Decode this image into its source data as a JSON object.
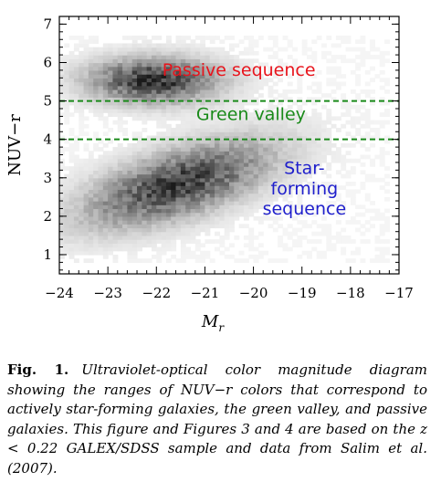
{
  "chart_data": {
    "type": "heatmap",
    "xlabel": "M_r",
    "xlabel_main": "M",
    "xlabel_sub": "r",
    "ylabel": "NUV−r",
    "xlim": [
      -24,
      -17
    ],
    "ylim": [
      0.5,
      7.2
    ],
    "x_ticks": [
      -24,
      -23,
      -22,
      -21,
      -20,
      -19,
      -18,
      -17
    ],
    "x_tick_labels": [
      "−24",
      "−23",
      "−22",
      "−21",
      "−20",
      "−19",
      "−18",
      "−17"
    ],
    "y_ticks": [
      1,
      2,
      3,
      4,
      5,
      6,
      7
    ],
    "y_tick_labels": [
      "1",
      "2",
      "3",
      "4",
      "5",
      "6",
      "7"
    ],
    "grayscale": true,
    "density_clouds": [
      {
        "name": "red_sequence",
        "center_x": -22.1,
        "center_y": 5.5,
        "spread_x": 0.9,
        "spread_y": 0.4,
        "peak": 0.85
      },
      {
        "name": "blue_cloud",
        "center_x": -21.6,
        "center_y": 2.8,
        "spread_x": 1.3,
        "spread_y": 0.6,
        "tilt": 0.35,
        "peak": 0.8
      }
    ],
    "hlines": [
      {
        "y": 5.0,
        "color": "#1a8a1a",
        "style": "dashed"
      },
      {
        "y": 4.0,
        "color": "#1a8a1a",
        "style": "dashed"
      }
    ],
    "annotations": [
      {
        "text": "Passive sequence",
        "x": -20.3,
        "y": 5.65,
        "color": "#e8141c"
      },
      {
        "text": "Green valley",
        "x": -20.05,
        "y": 4.5,
        "color": "#1a8a1a"
      },
      {
        "text": "Star-",
        "x": -18.95,
        "y": 3.1,
        "color": "#1f1fcc"
      },
      {
        "text": "forming",
        "x": -18.95,
        "y": 2.57,
        "color": "#1f1fcc"
      },
      {
        "text": "sequence",
        "x": -18.95,
        "y": 2.04,
        "color": "#1f1fcc"
      }
    ]
  },
  "caption": {
    "lead": "Fig.   1.",
    "text": "Ultraviolet-optical color magnitude diagram showing the ranges of NUV−r colors that correspond to actively star-forming galaxies, the green valley, and passive galaxies. This figure and Figures 3 and 4 are based on the z < 0.22 GALEX/SDSS sample and data from Salim et al. (2007)."
  }
}
